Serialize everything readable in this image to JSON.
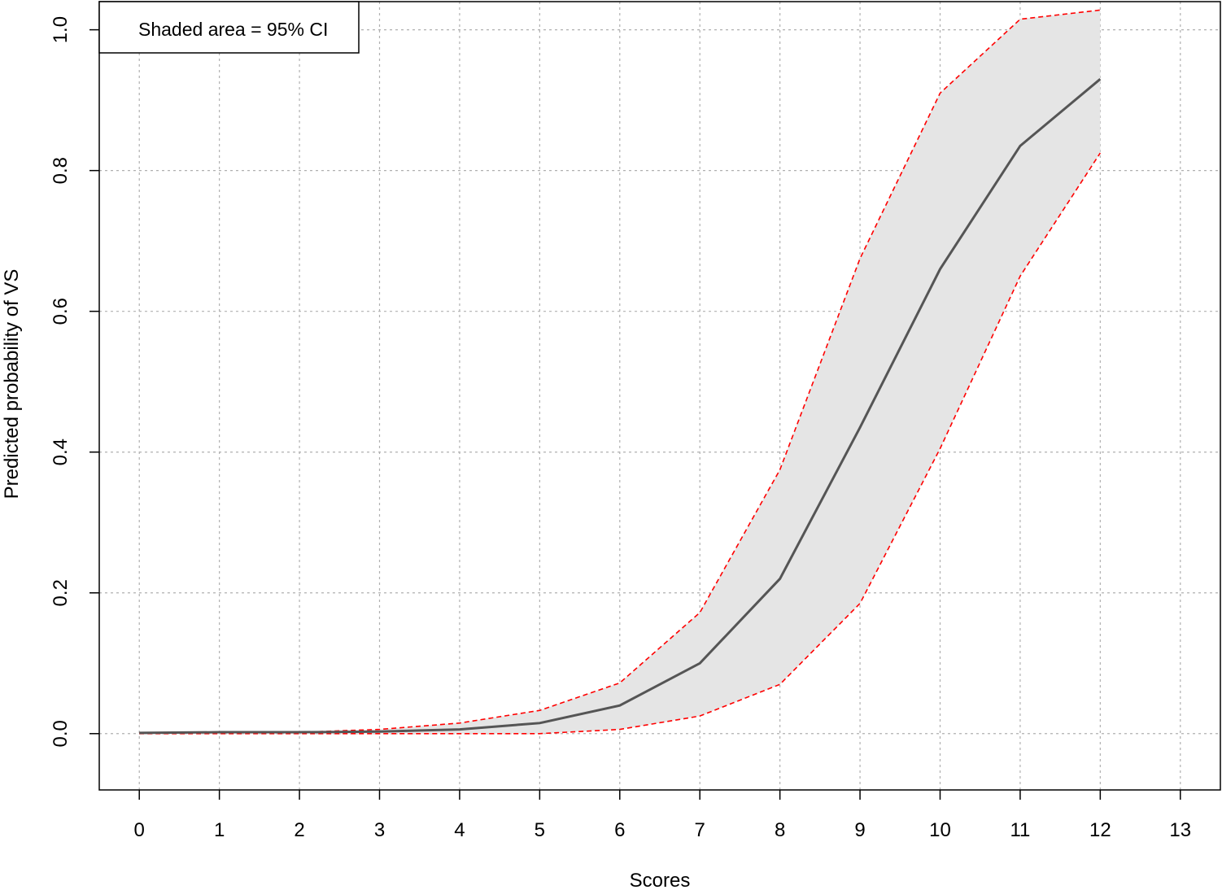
{
  "chart_data": {
    "type": "line",
    "title": "",
    "xlabel": "Scores",
    "ylabel": "Predicted probability of VS",
    "xlim": [
      -0.5,
      13.5
    ],
    "ylim": [
      -0.08,
      1.04
    ],
    "x_ticks": [
      0,
      1,
      2,
      3,
      4,
      5,
      6,
      7,
      8,
      9,
      10,
      11,
      12,
      13
    ],
    "y_ticks": [
      "0.0",
      "0.2",
      "0.4",
      "0.6",
      "0.8",
      "1.0"
    ],
    "grid": true,
    "legend": {
      "text": "Shaded area = 95% CI",
      "position": "top-left"
    },
    "x": [
      0,
      1,
      2,
      3,
      4,
      5,
      6,
      7,
      8,
      9,
      10,
      11,
      12
    ],
    "series": [
      {
        "role": "estimate",
        "color": "#555555",
        "values": [
          0.001,
          0.002,
          0.002,
          0.003,
          0.006,
          0.015,
          0.04,
          0.1,
          0.22,
          0.435,
          0.66,
          0.835,
          0.93
        ]
      },
      {
        "role": "upper",
        "color": "#ff0000",
        "values": [
          0.001,
          0.002,
          0.002,
          0.006,
          0.015,
          0.033,
          0.072,
          0.172,
          0.375,
          0.675,
          0.91,
          1.015,
          1.028
        ]
      },
      {
        "role": "lower",
        "color": "#ff0000",
        "values": [
          0.0,
          0.0,
          0.0,
          0.0,
          0.0,
          0.0,
          0.006,
          0.025,
          0.07,
          0.185,
          0.405,
          0.65,
          0.825
        ]
      }
    ],
    "band_color": "#e5e5e5"
  }
}
